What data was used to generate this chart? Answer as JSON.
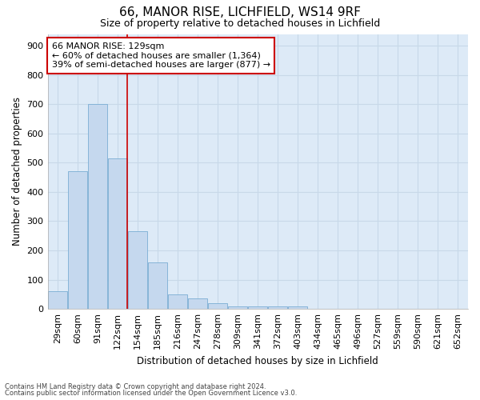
{
  "title1": "66, MANOR RISE, LICHFIELD, WS14 9RF",
  "title2": "Size of property relative to detached houses in Lichfield",
  "xlabel": "Distribution of detached houses by size in Lichfield",
  "ylabel": "Number of detached properties",
  "bar_color": "#c5d8ee",
  "bar_edge_color": "#7aadd4",
  "grid_color": "#c8d8e8",
  "background_color": "#ddeaf7",
  "annotation_box_color": "#ffffff",
  "annotation_border_color": "#cc0000",
  "vline_color": "#cc0000",
  "categories": [
    "29sqm",
    "60sqm",
    "91sqm",
    "122sqm",
    "154sqm",
    "185sqm",
    "216sqm",
    "247sqm",
    "278sqm",
    "309sqm",
    "341sqm",
    "372sqm",
    "403sqm",
    "434sqm",
    "465sqm",
    "496sqm",
    "527sqm",
    "559sqm",
    "590sqm",
    "621sqm",
    "652sqm"
  ],
  "values": [
    60,
    470,
    700,
    515,
    265,
    160,
    50,
    35,
    20,
    10,
    10,
    10,
    10,
    0,
    0,
    0,
    0,
    0,
    0,
    0,
    0
  ],
  "ylim": [
    0,
    940
  ],
  "yticks": [
    0,
    100,
    200,
    300,
    400,
    500,
    600,
    700,
    800,
    900
  ],
  "annotation_line1": "66 MANOR RISE: 129sqm",
  "annotation_line2": "← 60% of detached houses are smaller (1,364)",
  "annotation_line3": "39% of semi-detached houses are larger (877) →",
  "vline_x_idx": 3,
  "footnote1": "Contains HM Land Registry data © Crown copyright and database right 2024.",
  "footnote2": "Contains public sector information licensed under the Open Government Licence v3.0."
}
